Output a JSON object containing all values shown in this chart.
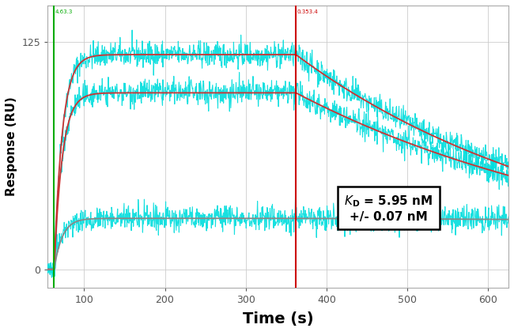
{
  "title": "",
  "xlabel": "Time (s)",
  "ylabel": "Response (RU)",
  "xlim": [
    55,
    625
  ],
  "ylim": [
    -10,
    145
  ],
  "x_ticks": [
    100,
    200,
    300,
    400,
    500,
    600
  ],
  "y_ticks": [
    0,
    125
  ],
  "green_line_x": 63,
  "green_line_label": "4.63.3",
  "red_line_x": 362,
  "red_line_label": "0.353.4",
  "fig_bg_color": "#ffffff",
  "plot_bg_color": "#ffffff",
  "curve1_plateau": 118,
  "curve2_plateau": 97,
  "curve3_plateau": 28,
  "on_rate": 0.1,
  "noise_amplitude": 3.5,
  "dissoc_decay1": 0.0028,
  "dissoc_decay2": 0.0024,
  "dissoc_decay3": 8e-05,
  "fit_color1": "#cc3333",
  "fit_color2": "#cc3333",
  "fit_color3": "#888888",
  "seed": 42
}
